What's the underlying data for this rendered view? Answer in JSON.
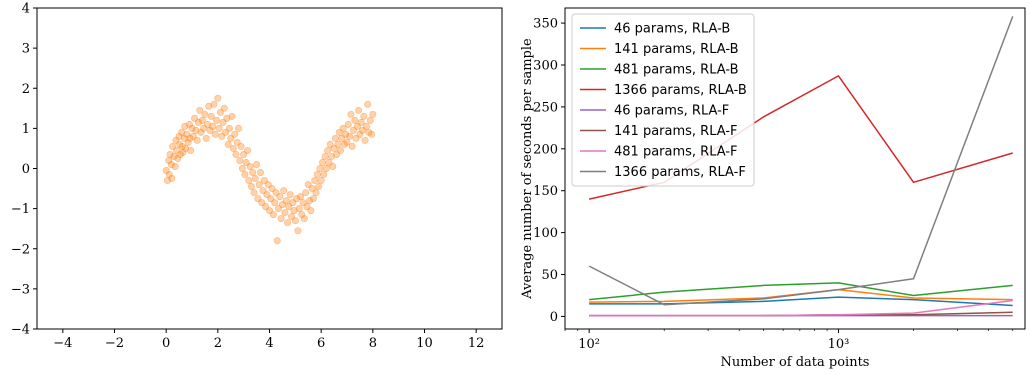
{
  "chart_data": [
    {
      "type": "scatter",
      "title": "",
      "xlabel": "",
      "ylabel": "",
      "xlim": [
        -5,
        13
      ],
      "ylim": [
        -4,
        4
      ],
      "xticks": [
        -4,
        -2,
        0,
        2,
        4,
        6,
        8,
        10,
        12
      ],
      "xtick_labels": [
        "−4",
        "−2",
        "0",
        "2",
        "4",
        "6",
        "8",
        "10",
        "12"
      ],
      "yticks": [
        -4,
        -3,
        -2,
        -1,
        0,
        1,
        2,
        3,
        4
      ],
      "ytick_labels": [
        "−4",
        "−3",
        "−2",
        "−1",
        "0",
        "1",
        "2",
        "3",
        "4"
      ],
      "grid": false,
      "color": "#ff7f0e",
      "points": [
        [
          0.0,
          -0.05
        ],
        [
          0.05,
          -0.3
        ],
        [
          0.1,
          0.2
        ],
        [
          0.12,
          -0.15
        ],
        [
          0.15,
          0.35
        ],
        [
          0.2,
          0.1
        ],
        [
          0.22,
          -0.25
        ],
        [
          0.25,
          0.55
        ],
        [
          0.3,
          0.3
        ],
        [
          0.35,
          0.05
        ],
        [
          0.38,
          0.7
        ],
        [
          0.4,
          0.45
        ],
        [
          0.45,
          0.25
        ],
        [
          0.5,
          0.8
        ],
        [
          0.52,
          0.6
        ],
        [
          0.55,
          0.35
        ],
        [
          0.6,
          0.9
        ],
        [
          0.62,
          0.55
        ],
        [
          0.65,
          0.4
        ],
        [
          0.7,
          0.75
        ],
        [
          0.72,
          1.05
        ],
        [
          0.75,
          0.5
        ],
        [
          0.8,
          0.85
        ],
        [
          0.85,
          0.65
        ],
        [
          0.9,
          1.1
        ],
        [
          0.92,
          0.75
        ],
        [
          0.95,
          0.45
        ],
        [
          1.0,
          1.0
        ],
        [
          1.05,
          0.8
        ],
        [
          1.1,
          1.25
        ],
        [
          1.15,
          0.95
        ],
        [
          1.2,
          0.7
        ],
        [
          1.25,
          1.15
        ],
        [
          1.3,
          1.45
        ],
        [
          1.35,
          0.9
        ],
        [
          1.4,
          1.2
        ],
        [
          1.45,
          1.0
        ],
        [
          1.5,
          1.35
        ],
        [
          1.55,
          0.75
        ],
        [
          1.6,
          1.1
        ],
        [
          1.65,
          1.55
        ],
        [
          1.7,
          0.95
        ],
        [
          1.75,
          1.3
        ],
        [
          1.8,
          1.05
        ],
        [
          1.85,
          1.6
        ],
        [
          1.9,
          0.85
        ],
        [
          1.95,
          1.2
        ],
        [
          2.0,
          1.75
        ],
        [
          2.05,
          1.0
        ],
        [
          2.1,
          1.4
        ],
        [
          2.15,
          0.8
        ],
        [
          2.2,
          1.15
        ],
        [
          2.25,
          1.5
        ],
        [
          2.3,
          0.9
        ],
        [
          2.35,
          1.25
        ],
        [
          2.4,
          0.6
        ],
        [
          2.45,
          1.0
        ],
        [
          2.5,
          0.75
        ],
        [
          2.55,
          1.3
        ],
        [
          2.6,
          0.5
        ],
        [
          2.65,
          0.85
        ],
        [
          2.7,
          0.35
        ],
        [
          2.75,
          0.65
        ],
        [
          2.8,
          1.0
        ],
        [
          2.85,
          0.2
        ],
        [
          2.9,
          0.55
        ],
        [
          2.95,
          0.0
        ],
        [
          3.0,
          0.35
        ],
        [
          3.05,
          -0.15
        ],
        [
          3.1,
          0.15
        ],
        [
          3.15,
          0.45
        ],
        [
          3.2,
          -0.3
        ],
        [
          3.25,
          0.05
        ],
        [
          3.3,
          -0.45
        ],
        [
          3.35,
          -0.1
        ],
        [
          3.4,
          -0.6
        ],
        [
          3.45,
          -0.25
        ],
        [
          3.5,
          0.1
        ],
        [
          3.55,
          -0.75
        ],
        [
          3.6,
          -0.4
        ],
        [
          3.65,
          -0.1
        ],
        [
          3.7,
          -0.85
        ],
        [
          3.75,
          -0.55
        ],
        [
          3.8,
          -0.3
        ],
        [
          3.85,
          -0.95
        ],
        [
          3.9,
          -0.65
        ],
        [
          3.95,
          -0.4
        ],
        [
          4.0,
          -1.05
        ],
        [
          4.05,
          -0.75
        ],
        [
          4.1,
          -0.5
        ],
        [
          4.15,
          -1.15
        ],
        [
          4.2,
          -0.85
        ],
        [
          4.25,
          -0.6
        ],
        [
          4.3,
          -1.8
        ],
        [
          4.35,
          -1.0
        ],
        [
          4.4,
          -0.7
        ],
        [
          4.45,
          -1.25
        ],
        [
          4.5,
          -0.9
        ],
        [
          4.55,
          -0.55
        ],
        [
          4.6,
          -1.1
        ],
        [
          4.65,
          -0.8
        ],
        [
          4.7,
          -1.35
        ],
        [
          4.75,
          -0.95
        ],
        [
          4.8,
          -0.65
        ],
        [
          4.85,
          -1.2
        ],
        [
          4.9,
          -0.85
        ],
        [
          4.95,
          -1.05
        ],
        [
          5.0,
          -1.3
        ],
        [
          5.05,
          -0.75
        ],
        [
          5.1,
          -1.55
        ],
        [
          5.15,
          -1.0
        ],
        [
          5.2,
          -0.7
        ],
        [
          5.25,
          -1.15
        ],
        [
          5.3,
          -0.85
        ],
        [
          5.35,
          -1.25
        ],
        [
          5.4,
          -0.6
        ],
        [
          5.45,
          -0.95
        ],
        [
          5.5,
          -0.4
        ],
        [
          5.55,
          -0.8
        ],
        [
          5.6,
          -1.05
        ],
        [
          5.65,
          -0.5
        ],
        [
          5.7,
          -0.75
        ],
        [
          5.75,
          -0.3
        ],
        [
          5.8,
          -0.6
        ],
        [
          5.85,
          -0.15
        ],
        [
          5.9,
          -0.45
        ],
        [
          5.95,
          0.0
        ],
        [
          6.0,
          -0.3
        ],
        [
          6.05,
          0.15
        ],
        [
          6.1,
          -0.15
        ],
        [
          6.15,
          0.3
        ],
        [
          6.2,
          0.0
        ],
        [
          6.25,
          0.45
        ],
        [
          6.3,
          0.15
        ],
        [
          6.35,
          0.6
        ],
        [
          6.4,
          0.3
        ],
        [
          6.45,
          0.05
        ],
        [
          6.5,
          0.5
        ],
        [
          6.55,
          0.75
        ],
        [
          6.6,
          0.35
        ],
        [
          6.65,
          0.6
        ],
        [
          6.7,
          0.9
        ],
        [
          6.75,
          0.45
        ],
        [
          6.8,
          0.75
        ],
        [
          6.85,
          1.0
        ],
        [
          6.9,
          0.6
        ],
        [
          6.95,
          0.85
        ],
        [
          7.0,
          0.65
        ],
        [
          7.05,
          1.1
        ],
        [
          7.1,
          0.8
        ],
        [
          7.15,
          1.35
        ],
        [
          7.2,
          0.55
        ],
        [
          7.25,
          0.95
        ],
        [
          7.3,
          1.2
        ],
        [
          7.35,
          0.75
        ],
        [
          7.4,
          1.05
        ],
        [
          7.45,
          1.45
        ],
        [
          7.5,
          0.85
        ],
        [
          7.55,
          1.15
        ],
        [
          7.6,
          0.95
        ],
        [
          7.65,
          1.3
        ],
        [
          7.7,
          0.7
        ],
        [
          7.75,
          1.05
        ],
        [
          7.8,
          1.6
        ],
        [
          7.85,
          0.9
        ],
        [
          7.9,
          1.2
        ],
        [
          7.95,
          0.85
        ],
        [
          8.0,
          1.35
        ]
      ]
    },
    {
      "type": "line",
      "title": "",
      "xlabel": "Number of data points",
      "ylabel": "Average number of seconds per sample",
      "xscale": "log",
      "x": [
        100,
        200,
        500,
        1000,
        2000,
        5000
      ],
      "xlim": [
        80,
        5600
      ],
      "ylim": [
        -15,
        368
      ],
      "xticks": [
        100,
        1000
      ],
      "xtick_labels": [
        "10²",
        "10³"
      ],
      "yticks": [
        0,
        50,
        100,
        150,
        200,
        250,
        300,
        350
      ],
      "ytick_labels": [
        "0",
        "50",
        "100",
        "150",
        "200",
        "250",
        "300",
        "350"
      ],
      "grid": false,
      "legend_position": "top-left",
      "series": [
        {
          "name": "46 params, RLA-B",
          "color": "#1f77b4",
          "values": [
            15,
            15,
            18,
            23,
            20,
            13
          ]
        },
        {
          "name": "141 params, RLA-B",
          "color": "#ff7f0e",
          "values": [
            17,
            18,
            22,
            32,
            22,
            20
          ]
        },
        {
          "name": "481 params, RLA-B",
          "color": "#2ca02c",
          "values": [
            20,
            29,
            37,
            40,
            25,
            37
          ]
        },
        {
          "name": "1366 params, RLA-B",
          "color": "#d62728",
          "values": [
            140,
            160,
            238,
            287,
            160,
            195
          ]
        },
        {
          "name": "46 params, RLA-F",
          "color": "#9467bd",
          "values": [
            1,
            1,
            1,
            1,
            1,
            1
          ]
        },
        {
          "name": "141 params, RLA-F",
          "color": "#8c564b",
          "values": [
            1,
            1,
            1,
            2,
            2,
            5
          ]
        },
        {
          "name": "481 params, RLA-F",
          "color": "#e377c2",
          "values": [
            1,
            1,
            1,
            2,
            4,
            19
          ]
        },
        {
          "name": "1366 params, RLA-F",
          "color": "#7f7f7f",
          "values": [
            60,
            14,
            21,
            32,
            45,
            358
          ]
        }
      ]
    }
  ]
}
